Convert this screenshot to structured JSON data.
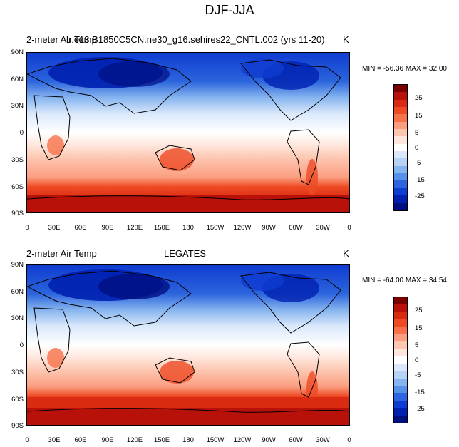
{
  "title": "DJF-JJA",
  "panels": [
    {
      "left_label": "2-meter Air Temp",
      "center_label": "b.e13.B1850C5CN.ne30_g16.sehires22_CNTL.002 (yrs 11-20)",
      "units": "K",
      "stats": "MIN = -56.36 MAX =  32.00"
    },
    {
      "left_label": "2-meter Air Temp",
      "center_label": "LEGATES",
      "units": "K",
      "stats": "MIN = -64.00 MAX =  34.54"
    }
  ],
  "lat_ticks": [
    "90N",
    "60N",
    "30N",
    "0",
    "30S",
    "60S",
    "90S"
  ],
  "lon_ticks": [
    "0",
    "30E",
    "60E",
    "90E",
    "120E",
    "150E",
    "180",
    "150W",
    "120W",
    "90W",
    "60W",
    "30W",
    "0"
  ],
  "colorbar": {
    "labels": [
      "25",
      "15",
      "5",
      "0",
      "-5",
      "-15",
      "-25"
    ],
    "colors": [
      "#7a0000",
      "#b81109",
      "#d92a12",
      "#ee4a24",
      "#f7724a",
      "#fb9e80",
      "#fdc6b0",
      "#fee6dc",
      "#ffffff",
      "#d9e8fb",
      "#b6d2f5",
      "#86b4ef",
      "#5591e6",
      "#2c65dd",
      "#0f3cd1",
      "#0020b0",
      "#000f80"
    ]
  }
}
